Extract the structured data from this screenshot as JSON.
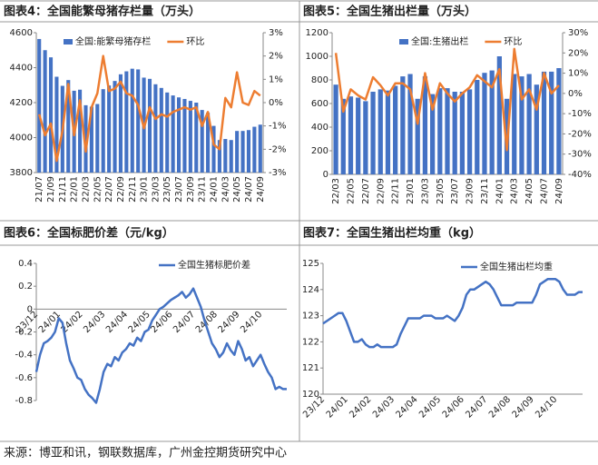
{
  "chart_data": [
    {
      "type": "bar",
      "title": "图表4：全国能繁母猪存栏量（万头）",
      "categories": [
        "21/07",
        null,
        "21/09",
        null,
        "21/11",
        null,
        "22/01",
        null,
        "22/03",
        null,
        "22/05",
        null,
        "22/07",
        null,
        "22/09",
        null,
        "22/11",
        null,
        "23/01",
        null,
        "23/03",
        null,
        "23/05",
        null,
        "23/07",
        null,
        "23/09",
        null,
        "23/11",
        null,
        "24/01",
        null,
        "24/03",
        null,
        "24/05",
        null,
        "24/07",
        null,
        "24/09"
      ],
      "series": [
        {
          "name": "全国:能繁母猪存栏",
          "color": "#4472c4",
          "values": [
            4564,
            4500,
            4459,
            4348,
            4296,
            4329,
            4268,
            4274,
            4185,
            4177,
            4192,
            4277,
            4298,
            4324,
            4362,
            4379,
            4394,
            4390,
            4343,
            4336,
            4305,
            4284,
            4258,
            4241,
            4230,
            4221,
            4210,
            4200,
            4158,
            4142,
            4067,
            3986,
            3992,
            3986,
            4038,
            4038,
            4043,
            4062,
            4074
          ]
        },
        {
          "name": "环比",
          "type": "line",
          "axis": "y2",
          "color": "#ed7d31",
          "values": [
            -0.5,
            -1.4,
            -0.9,
            -2.5,
            -1.2,
            0.8,
            -1.4,
            0.1,
            -2.1,
            -0.2,
            0.4,
            2.0,
            0.5,
            0.6,
            0.9,
            0.4,
            0.3,
            -0.1,
            -1.1,
            -0.2,
            -0.7,
            -0.5,
            -0.6,
            -0.4,
            -0.3,
            -0.2,
            -0.3,
            -0.2,
            -1.0,
            -0.4,
            -1.8,
            -2.0,
            0.2,
            -0.2,
            1.3,
            0.0,
            -0.1,
            0.5,
            0.3
          ]
        }
      ],
      "ylim": [
        3800,
        4600
      ],
      "yticks": [
        3800,
        4000,
        4200,
        4400,
        4600
      ],
      "y2lim": [
        -3,
        3
      ],
      "y2ticks": [
        {
          "value": 3,
          "label": "3%"
        },
        {
          "value": 2,
          "label": "2%"
        },
        {
          "value": 1,
          "label": "1%"
        },
        {
          "value": 0,
          "label": "0%"
        },
        {
          "value": -1,
          "label": "-1%"
        },
        {
          "value": -2,
          "label": "-2%"
        },
        {
          "value": -3,
          "label": "-3%"
        }
      ]
    },
    {
      "type": "bar",
      "title": "图表5：全国生猪出栏量（万头）",
      "categories": [
        "22/03",
        null,
        "22/05",
        null,
        "22/07",
        null,
        "22/09",
        null,
        "22/11",
        null,
        "23/01",
        null,
        "23/03",
        null,
        "23/05",
        null,
        "23/07",
        null,
        "23/09",
        null,
        "23/11",
        null,
        "24/01",
        null,
        "24/03",
        null,
        "24/05",
        null,
        "24/07",
        null,
        "24/09"
      ],
      "series": [
        {
          "name": "全国:生猪出栏",
          "color": "#4472c4",
          "values": [
            760,
            640,
            660,
            650,
            620,
            700,
            720,
            710,
            750,
            830,
            850,
            640,
            830,
            680,
            730,
            730,
            700,
            700,
            720,
            800,
            860,
            880,
            1000,
            640,
            850,
            830,
            850,
            760,
            870,
            870,
            900
          ]
        },
        {
          "name": "环比",
          "type": "line",
          "axis": "y2",
          "color": "#ed7d31",
          "values": [
            20,
            -9,
            2,
            -1,
            -3,
            8,
            4,
            -1,
            5,
            5,
            2,
            -15,
            10,
            -8,
            5,
            0,
            -4,
            0,
            3,
            9,
            6,
            3,
            12,
            -28,
            22,
            -3,
            2,
            -8,
            10,
            0,
            4
          ]
        }
      ],
      "ylim": [
        0,
        1200
      ],
      "yticks": [
        0,
        200,
        400,
        600,
        800,
        1000,
        1200
      ],
      "y2lim": [
        -40,
        30
      ],
      "y2ticks": [
        {
          "value": 30,
          "label": "30%"
        },
        {
          "value": 20,
          "label": "20%"
        },
        {
          "value": 10,
          "label": "10%"
        },
        {
          "value": 0,
          "label": "0%"
        },
        {
          "value": -10,
          "label": "-10%"
        },
        {
          "value": -20,
          "label": "-20%"
        },
        {
          "value": -30,
          "label": "-30%"
        },
        {
          "value": -40,
          "label": "-40%"
        }
      ]
    },
    {
      "type": "line",
      "title": "图表6：全国标肥价差（元/kg）",
      "categories": [
        "23/12",
        null,
        null,
        null,
        null,
        null,
        "24/01",
        null,
        null,
        null,
        null,
        null,
        "24/02",
        null,
        null,
        null,
        null,
        null,
        "24/03",
        null,
        null,
        null,
        null,
        null,
        "24/04",
        null,
        null,
        null,
        null,
        null,
        "24/05",
        null,
        null,
        null,
        null,
        null,
        "24/06",
        null,
        null,
        null,
        null,
        null,
        "24/07",
        null,
        null,
        null,
        null,
        null,
        "24/08",
        null,
        null,
        null,
        null,
        null,
        "24/09",
        null,
        null,
        null,
        null,
        null,
        "24/10",
        null,
        null,
        null,
        null,
        null,
        null,
        null
      ],
      "series": [
        {
          "name": "全国生猪标肥价差",
          "color": "#4472c4",
          "values": [
            -0.55,
            -0.4,
            -0.3,
            -0.28,
            -0.25,
            -0.2,
            -0.08,
            -0.12,
            -0.3,
            -0.45,
            -0.52,
            -0.6,
            -0.62,
            -0.7,
            -0.75,
            -0.78,
            -0.82,
            -0.7,
            -0.55,
            -0.48,
            -0.5,
            -0.42,
            -0.45,
            -0.38,
            -0.35,
            -0.3,
            -0.32,
            -0.25,
            -0.28,
            -0.2,
            -0.18,
            -0.1,
            -0.05,
            0.0,
            0.02,
            0.05,
            0.08,
            0.1,
            0.12,
            0.15,
            0.1,
            0.13,
            0.18,
            0.1,
            0.02,
            -0.1,
            -0.2,
            -0.3,
            -0.35,
            -0.42,
            -0.38,
            -0.3,
            -0.36,
            -0.4,
            -0.28,
            -0.35,
            -0.45,
            -0.42,
            -0.5,
            -0.45,
            -0.4,
            -0.48,
            -0.55,
            -0.6,
            -0.7,
            -0.68,
            -0.7,
            -0.7
          ]
        }
      ],
      "ylim": [
        -0.8,
        0.4
      ],
      "yticks": [
        -0.8,
        -0.6,
        -0.4,
        -0.2,
        0,
        0.2,
        0.4
      ]
    },
    {
      "type": "line",
      "title": "图表7：全国生猪出栏均重（kg）",
      "categories": [
        "23/12",
        null,
        null,
        null,
        null,
        null,
        "24/01",
        null,
        null,
        null,
        null,
        null,
        "24/02",
        null,
        null,
        null,
        null,
        null,
        "24/03",
        null,
        null,
        null,
        null,
        null,
        "24/04",
        null,
        null,
        null,
        null,
        null,
        "24/05",
        null,
        null,
        null,
        null,
        null,
        "24/06",
        null,
        null,
        null,
        null,
        null,
        "24/07",
        null,
        null,
        null,
        null,
        null,
        "24/08",
        null,
        null,
        null,
        null,
        null,
        "24/09",
        null,
        null,
        null,
        null,
        null,
        "24/10",
        null,
        null,
        null,
        null,
        null,
        null,
        null
      ],
      "series": [
        {
          "name": "全国生猪出栏均重",
          "color": "#4472c4",
          "values": [
            122.7,
            122.8,
            122.9,
            123.0,
            123.1,
            123.1,
            122.8,
            122.4,
            122.0,
            122.0,
            122.1,
            121.9,
            121.8,
            121.8,
            121.9,
            121.8,
            121.8,
            121.8,
            121.8,
            121.9,
            122.3,
            122.6,
            122.9,
            122.9,
            122.9,
            122.9,
            123.0,
            123.0,
            123.0,
            122.9,
            122.9,
            122.9,
            123.0,
            122.9,
            122.8,
            123.0,
            123.3,
            123.8,
            124.0,
            124.0,
            124.1,
            124.2,
            124.3,
            124.2,
            124.0,
            123.7,
            123.4,
            123.4,
            123.4,
            123.4,
            123.5,
            123.5,
            123.5,
            123.5,
            123.5,
            123.8,
            124.2,
            124.3,
            124.4,
            124.4,
            124.4,
            124.3,
            124.0,
            123.8,
            123.8,
            123.8,
            123.9,
            123.9
          ]
        }
      ],
      "ylim": [
        120,
        125
      ],
      "yticks": [
        120,
        121,
        122,
        123,
        124,
        125
      ]
    }
  ],
  "source": "来源：博亚和讯，钢联数据库，广州金控期货研究中心"
}
